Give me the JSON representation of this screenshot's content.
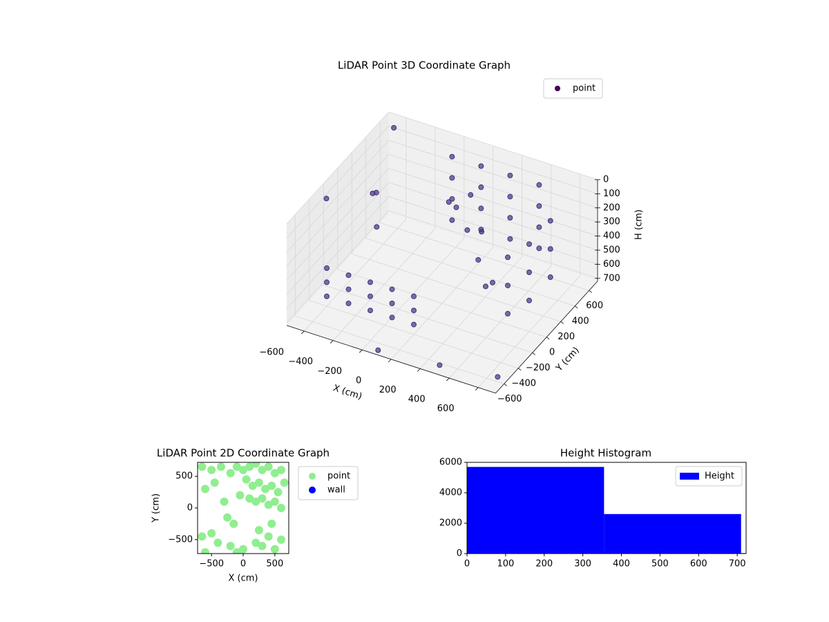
{
  "chart_data": [
    {
      "type": "scatter3d",
      "title": "LiDAR Point 3D Coordinate Graph",
      "xlabel": "X (cm)",
      "ylabel": "Y (cm)",
      "zlabel": "H (cm)",
      "xlim": [
        -720,
        720
      ],
      "ylim": [
        -720,
        720
      ],
      "zlim": [
        0,
        720
      ],
      "z_inverted": true,
      "xticks": [
        {
          "value": -600,
          "label": "−600"
        },
        {
          "value": -400,
          "label": "−400"
        },
        {
          "value": -200,
          "label": "−200"
        },
        0,
        200,
        400,
        600
      ],
      "yticks": [
        {
          "value": -600,
          "label": "−600"
        },
        {
          "value": -400,
          "label": "−400"
        },
        {
          "value": -200,
          "label": "−200"
        },
        0,
        200,
        400,
        600
      ],
      "zticks": [
        0,
        100,
        200,
        300,
        400,
        500,
        600,
        700
      ],
      "grid": true,
      "legend": "upper right",
      "series": [
        {
          "name": "point",
          "color": "#46327e",
          "x": [
            -200,
            -200,
            -200,
            -200,
            0,
            0,
            0,
            0,
            200,
            200,
            200,
            200,
            400,
            400,
            400,
            400,
            600,
            600,
            600,
            600,
            600,
            600,
            550,
            550,
            550,
            -600,
            -600,
            -600,
            -450,
            -450,
            -450,
            -300,
            -300,
            -300,
            -150,
            -150,
            -150,
            0,
            0,
            0,
            0,
            100,
            50,
            200,
            300,
            150,
            -100,
            250,
            -600,
            -650,
            -500,
            -700,
            700,
            -100,
            300,
            -650
          ],
          "y": [
            550,
            550,
            550,
            550,
            550,
            550,
            550,
            550,
            550,
            550,
            550,
            550,
            550,
            550,
            550,
            550,
            300,
            300,
            300,
            0,
            0,
            0,
            -200,
            -200,
            -200,
            -400,
            -400,
            -400,
            -400,
            -400,
            -400,
            -400,
            -400,
            -400,
            -400,
            -400,
            -400,
            -400,
            -400,
            -400,
            200,
            150,
            300,
            100,
            0,
            250,
            300,
            200,
            300,
            350,
            100,
            -200,
            -650,
            -700,
            -650,
            650
          ],
          "h": [
            50,
            200,
            350,
            500,
            50,
            200,
            350,
            500,
            50,
            200,
            350,
            500,
            50,
            200,
            350,
            500,
            100,
            300,
            500,
            100,
            300,
            500,
            100,
            300,
            500,
            450,
            550,
            650,
            450,
            550,
            650,
            450,
            550,
            650,
            450,
            550,
            650,
            450,
            550,
            650,
            150,
            250,
            100,
            400,
            500,
            300,
            200,
            600,
            300,
            350,
            400,
            100,
            650,
            700,
            700,
            50
          ]
        }
      ]
    },
    {
      "type": "scatter",
      "title": "LiDAR Point 2D Coordinate Graph",
      "xlabel": "X (cm)",
      "ylabel": "Y (cm)",
      "xlim": [
        -720,
        720
      ],
      "ylim": [
        -720,
        720
      ],
      "xticks": [
        {
          "value": -500,
          "label": "−500"
        },
        0,
        500
      ],
      "yticks": [
        {
          "value": -500,
          "label": "−500"
        },
        0,
        500
      ],
      "legend": "outside upper left",
      "series": [
        {
          "name": "point",
          "color": "#90ee90",
          "x": [
            -650,
            -500,
            -350,
            -600,
            -450,
            -200,
            -100,
            0,
            100,
            200,
            300,
            400,
            500,
            600,
            650,
            50,
            150,
            250,
            350,
            450,
            550,
            -50,
            100,
            200,
            300,
            400,
            500,
            600,
            -300,
            -250,
            -150,
            -650,
            -500,
            -400,
            -200,
            0,
            200,
            300,
            400,
            500,
            600,
            -600,
            -100,
            250,
            450
          ],
          "y": [
            650,
            600,
            650,
            300,
            400,
            550,
            650,
            600,
            650,
            700,
            600,
            650,
            550,
            600,
            400,
            450,
            350,
            400,
            300,
            350,
            250,
            200,
            150,
            100,
            150,
            50,
            100,
            0,
            100,
            -150,
            -250,
            -450,
            -400,
            -550,
            -600,
            -650,
            -550,
            -600,
            -450,
            -650,
            -500,
            -700,
            -700,
            -350,
            -250
          ]
        },
        {
          "name": "wall",
          "color": "#0000ff",
          "x": [],
          "y": []
        }
      ]
    },
    {
      "type": "histogram",
      "title": "Height Histogram",
      "bins": [
        0,
        355,
        710,
        720
      ],
      "counts": [
        5700,
        2600,
        30
      ],
      "xlim": [
        0,
        723
      ],
      "ylim": [
        0,
        6000
      ],
      "xticks": [
        0,
        100,
        200,
        300,
        400,
        500,
        600,
        700
      ],
      "yticks": [
        0,
        2000,
        4000,
        6000
      ],
      "legend": "upper right",
      "series_name": "Height",
      "color": "#0000ff"
    }
  ]
}
